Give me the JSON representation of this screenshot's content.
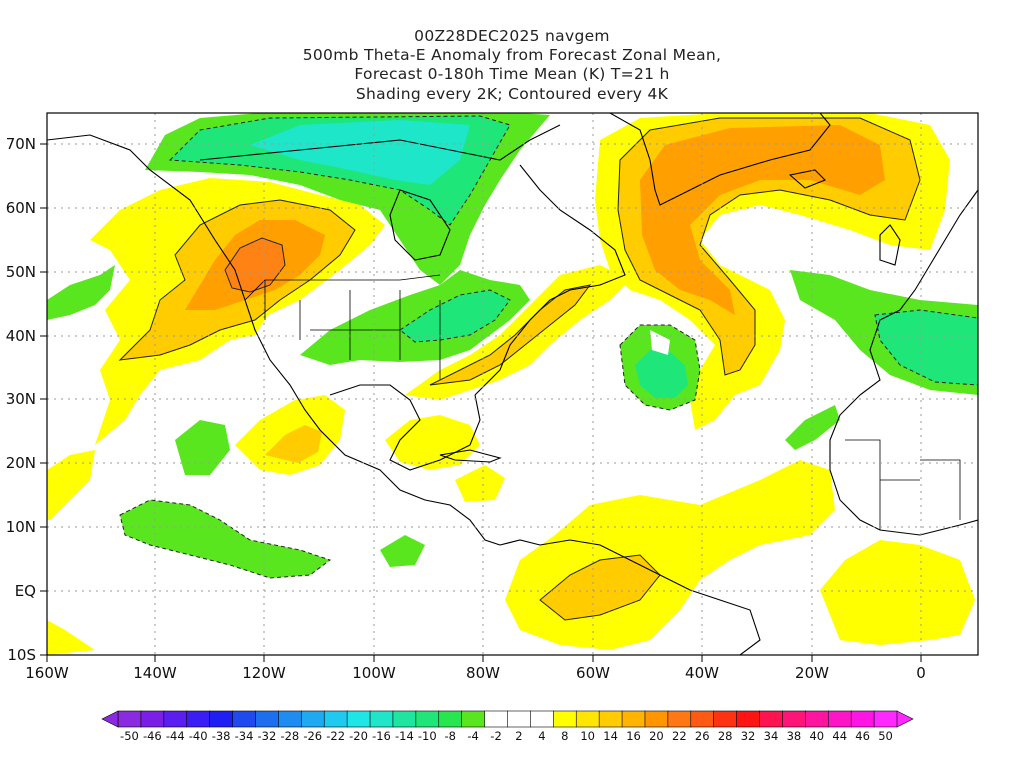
{
  "title": {
    "line1": "00Z28DEC2025 navgem",
    "line2": "500mb Theta-E Anomaly from Forecast Zonal Mean,",
    "line3": "Forecast 0-180h Time Mean (K) T=21 h",
    "line4": "Shading every 2K; Contoured every 4K"
  },
  "axes": {
    "lon_labels": [
      "160W",
      "140W",
      "120W",
      "100W",
      "80W",
      "60W",
      "40W",
      "20W",
      "0"
    ],
    "lat_labels": [
      "70N",
      "60N",
      "50N",
      "40N",
      "30N",
      "20N",
      "10N",
      "EQ",
      "10S"
    ],
    "lon_range": [
      -160,
      10
    ],
    "lat_range": [
      -10,
      75
    ]
  },
  "colorbar": {
    "labels": [
      "-50",
      "-46",
      "-44",
      "-40",
      "-38",
      "-34",
      "-32",
      "-28",
      "-26",
      "-22",
      "-20",
      "-16",
      "-14",
      "-10",
      "-8",
      "-4",
      "-2",
      "2",
      "4",
      "8",
      "10",
      "14",
      "16",
      "20",
      "22",
      "26",
      "28",
      "32",
      "34",
      "38",
      "40",
      "44",
      "46",
      "50"
    ],
    "colors": [
      "#8a2be2",
      "#7a1ee8",
      "#5a1ef0",
      "#3a1ef5",
      "#1e1ef5",
      "#1e4af0",
      "#1e6ef0",
      "#1e8cf0",
      "#1eaaf0",
      "#1ecaf0",
      "#1ee6e6",
      "#1ee6c8",
      "#1ee6a0",
      "#1ee678",
      "#28e650",
      "#5ae61e",
      "#ffffff",
      "#ffffff",
      "#ffffff",
      "#ffff00",
      "#ffe600",
      "#ffcc00",
      "#ffb400",
      "#ff9600",
      "#ff7814",
      "#ff5a14",
      "#ff3214",
      "#ff1414",
      "#ff1450",
      "#ff1478",
      "#ff14a0",
      "#ff14c8",
      "#ff14e6",
      "#ff28ff"
    ]
  },
  "colors": {
    "warm_light": "#ffff00",
    "warm_mid": "#ffcc00",
    "warm_strong": "#ffa000",
    "warm_peak": "#ff8214",
    "cool_light": "#5ae61e",
    "cool_mid": "#1ee678",
    "cool_strong": "#1ee6c8"
  }
}
